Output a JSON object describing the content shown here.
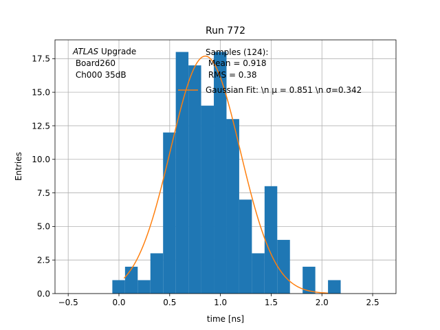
{
  "chart_data": {
    "type": "bar",
    "title": "Run 772",
    "xlabel": "time [ns]",
    "ylabel": "Entries",
    "xlim": [
      -0.63,
      2.73
    ],
    "ylim": [
      0,
      18.9
    ],
    "grid": true,
    "x_ticks": [
      -0.5,
      0.0,
      0.5,
      1.0,
      1.5,
      2.0,
      2.5
    ],
    "x_tick_labels": [
      "−0.5",
      "0.0",
      "0.5",
      "1.0",
      "1.5",
      "2.0",
      "2.5"
    ],
    "y_ticks": [
      0.0,
      2.5,
      5.0,
      7.5,
      10.0,
      12.5,
      15.0,
      17.5
    ],
    "y_tick_labels": [
      "0.0",
      "2.5",
      "5.0",
      "7.5",
      "10.0",
      "12.5",
      "15.0",
      "17.5"
    ],
    "bin_width": 0.125,
    "bin_edges_start": [
      -0.065,
      0.06,
      0.185,
      0.31,
      0.435,
      0.56,
      0.685,
      0.81,
      0.935,
      1.06,
      1.185,
      1.31,
      1.435,
      1.56,
      1.685,
      1.81,
      1.935,
      2.06
    ],
    "values": [
      1,
      2,
      1,
      3,
      12,
      18,
      17,
      14,
      18,
      13,
      7,
      3,
      8,
      4,
      0,
      2,
      0,
      1
    ],
    "bar_color": "#1f77b4",
    "fit_color": "#ff7f0e",
    "fit": {
      "type": "gaussian",
      "mu": 0.851,
      "sigma": 0.342,
      "x_start": 0.05,
      "x_end": 2.06
    },
    "annotation": {
      "italic_prefix": "ATLAS",
      "line1_rest": " Upgrade",
      "line2": " Board260",
      "line3": " Ch000 35dB"
    },
    "legend": {
      "placement": "top-right",
      "samples_lines": [
        "Samples (124):",
        " Mean = 0.918",
        " RMS = 0.38"
      ],
      "fit_label": "Gaussian Fit: \\n μ = 0.851 \\n σ=0.342"
    }
  }
}
